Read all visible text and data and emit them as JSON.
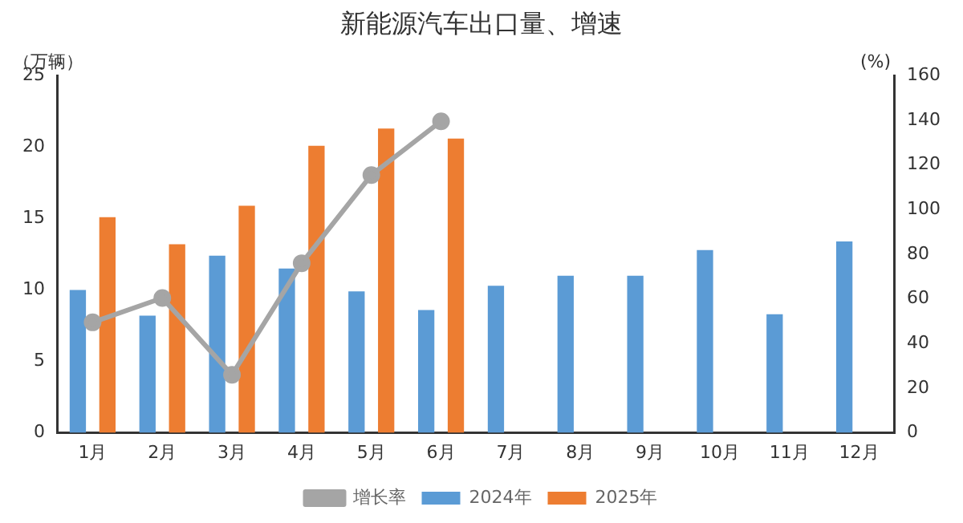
{
  "chart_data": {
    "type": "bar",
    "title": "新能源汽车出口量、增速",
    "ylabel": "（万辆）",
    "y2label": "(%)",
    "categories": [
      "1月",
      "2月",
      "3月",
      "4月",
      "5月",
      "6月",
      "7月",
      "8月",
      "9月",
      "10月",
      "11月",
      "12月"
    ],
    "series": [
      {
        "name": "2024年",
        "color": "#5b9bd5",
        "values": [
          10.0,
          8.2,
          12.4,
          11.5,
          9.9,
          8.6,
          10.3,
          11.0,
          11.0,
          12.8,
          8.3,
          13.4
        ]
      },
      {
        "name": "2025年",
        "color": "#ed7d31",
        "values": [
          15.1,
          13.2,
          15.9,
          20.1,
          21.3,
          20.6,
          null,
          null,
          null,
          null,
          null,
          null
        ]
      },
      {
        "name": "增长率",
        "type": "line",
        "axis": "y2",
        "color": "#a5a5a5",
        "marker": "circle",
        "values": [
          49.5,
          60.4,
          26,
          76,
          115.5,
          139.6,
          null,
          null,
          null,
          null,
          null,
          null
        ]
      }
    ],
    "ylim": [
      0,
      25
    ],
    "yticks": [
      0,
      5,
      10,
      15,
      20,
      25
    ],
    "y2lim": [
      0,
      160
    ],
    "y2ticks": [
      0,
      20,
      40,
      60,
      80,
      100,
      120,
      140,
      160
    ],
    "grid": false,
    "legend": "bottom"
  }
}
